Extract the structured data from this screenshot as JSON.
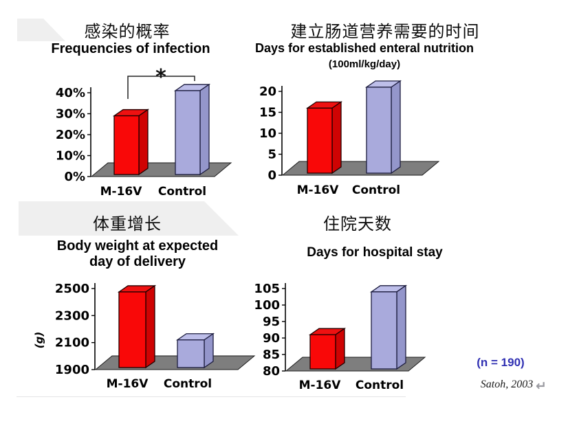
{
  "page": {
    "background": "#ffffff",
    "footer": {
      "n_label": "(n = 190)",
      "citation": "Satoh, 2003",
      "return_symbol": "↵"
    }
  },
  "colors": {
    "floor": "#7e7e7e",
    "axis": "#000000",
    "n_label": "#2f2fb2",
    "citation": "#1a1a1a",
    "return_icon": "#9a9aa0",
    "decor_shape": "#efefef",
    "bar_colors": [
      {
        "name": "M-16V",
        "front": "#f90808",
        "top": "#ee1111",
        "side": "#cf0303",
        "stroke": "#210000"
      },
      {
        "name": "Control",
        "front": "#a9aadc",
        "top": "#bdbee9",
        "side": "#9496cb",
        "stroke": "#1c1c3e"
      }
    ]
  },
  "chart_data": [
    {
      "id": "infection",
      "type": "bar",
      "title_zh": "感染的概率",
      "title_en": "Frequencies of infection",
      "categories": [
        "M-16V",
        "Control"
      ],
      "values": [
        29,
        41
      ],
      "unit": "%",
      "yticks": [
        0,
        10,
        20,
        30,
        40
      ],
      "ytick_labels": [
        "0%",
        "10%",
        "20%",
        "30%",
        "40%"
      ],
      "ylim": [
        0,
        40
      ],
      "significance": "*",
      "grid": false,
      "legend": false
    },
    {
      "id": "enteral",
      "type": "bar",
      "title_zh": "建立肠道营养需要的时间",
      "title_en": "Days for established enteral nutrition",
      "subtitle": "(100ml/kg/day)",
      "categories": [
        "M-16V",
        "Control"
      ],
      "values": [
        16,
        21
      ],
      "unit": "days",
      "yticks": [
        0,
        5,
        10,
        15,
        20
      ],
      "ylim": [
        0,
        20
      ],
      "grid": false,
      "legend": false
    },
    {
      "id": "weight",
      "type": "bar",
      "title_zh": "体重增长",
      "title_en": "Body weight at expected day of delivery",
      "title_en_lines": [
        "Body weight at expected",
        "day of delivery"
      ],
      "ylabel": "(g)",
      "categories": [
        "M-16V",
        "Control"
      ],
      "values": [
        2475,
        2120
      ],
      "unit": "g",
      "yticks": [
        1900,
        2100,
        2300,
        2500
      ],
      "ylim": [
        1900,
        2500
      ],
      "grid": false,
      "legend": false
    },
    {
      "id": "hospital",
      "type": "bar",
      "title_zh": "住院天数",
      "title_en": "Days for hospital stay",
      "categories": [
        "M-16V",
        "Control"
      ],
      "values": [
        91,
        104
      ],
      "unit": "days",
      "yticks": [
        80,
        85,
        90,
        95,
        100,
        105
      ],
      "ylim": [
        80,
        105
      ],
      "grid": false,
      "legend": false
    }
  ]
}
